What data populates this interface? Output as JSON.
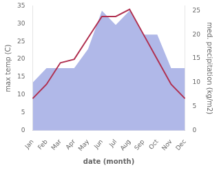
{
  "chart_data": {
    "type": "line",
    "categories": [
      "Jan",
      "Feb",
      "Mar",
      "Apr",
      "May",
      "Jun",
      "Jul",
      "Aug",
      "Sep",
      "Oct",
      "Nov",
      "Dec"
    ],
    "series": [
      {
        "type": "area",
        "color": "#b0b8e8",
        "axis": "y2",
        "values": [
          10,
          13,
          13,
          13,
          17,
          25,
          22,
          25,
          20,
          20,
          13,
          13
        ]
      },
      {
        "type": "line",
        "color": "#b03050",
        "values": [
          9,
          13,
          19,
          20,
          26,
          32,
          32,
          34,
          27,
          20,
          13,
          9
        ]
      }
    ],
    "x_label": "date (month)",
    "y_label": "max temp (C)",
    "y2_label": "med. precipitation (kg/m2)",
    "ylim": [
      0,
      35
    ],
    "yticks": [
      0,
      5,
      10,
      15,
      20,
      25,
      30,
      35
    ],
    "y2lim": [
      0,
      26
    ],
    "y2ticks": [
      0,
      5,
      10,
      15,
      20,
      25
    ],
    "grid": false
  }
}
